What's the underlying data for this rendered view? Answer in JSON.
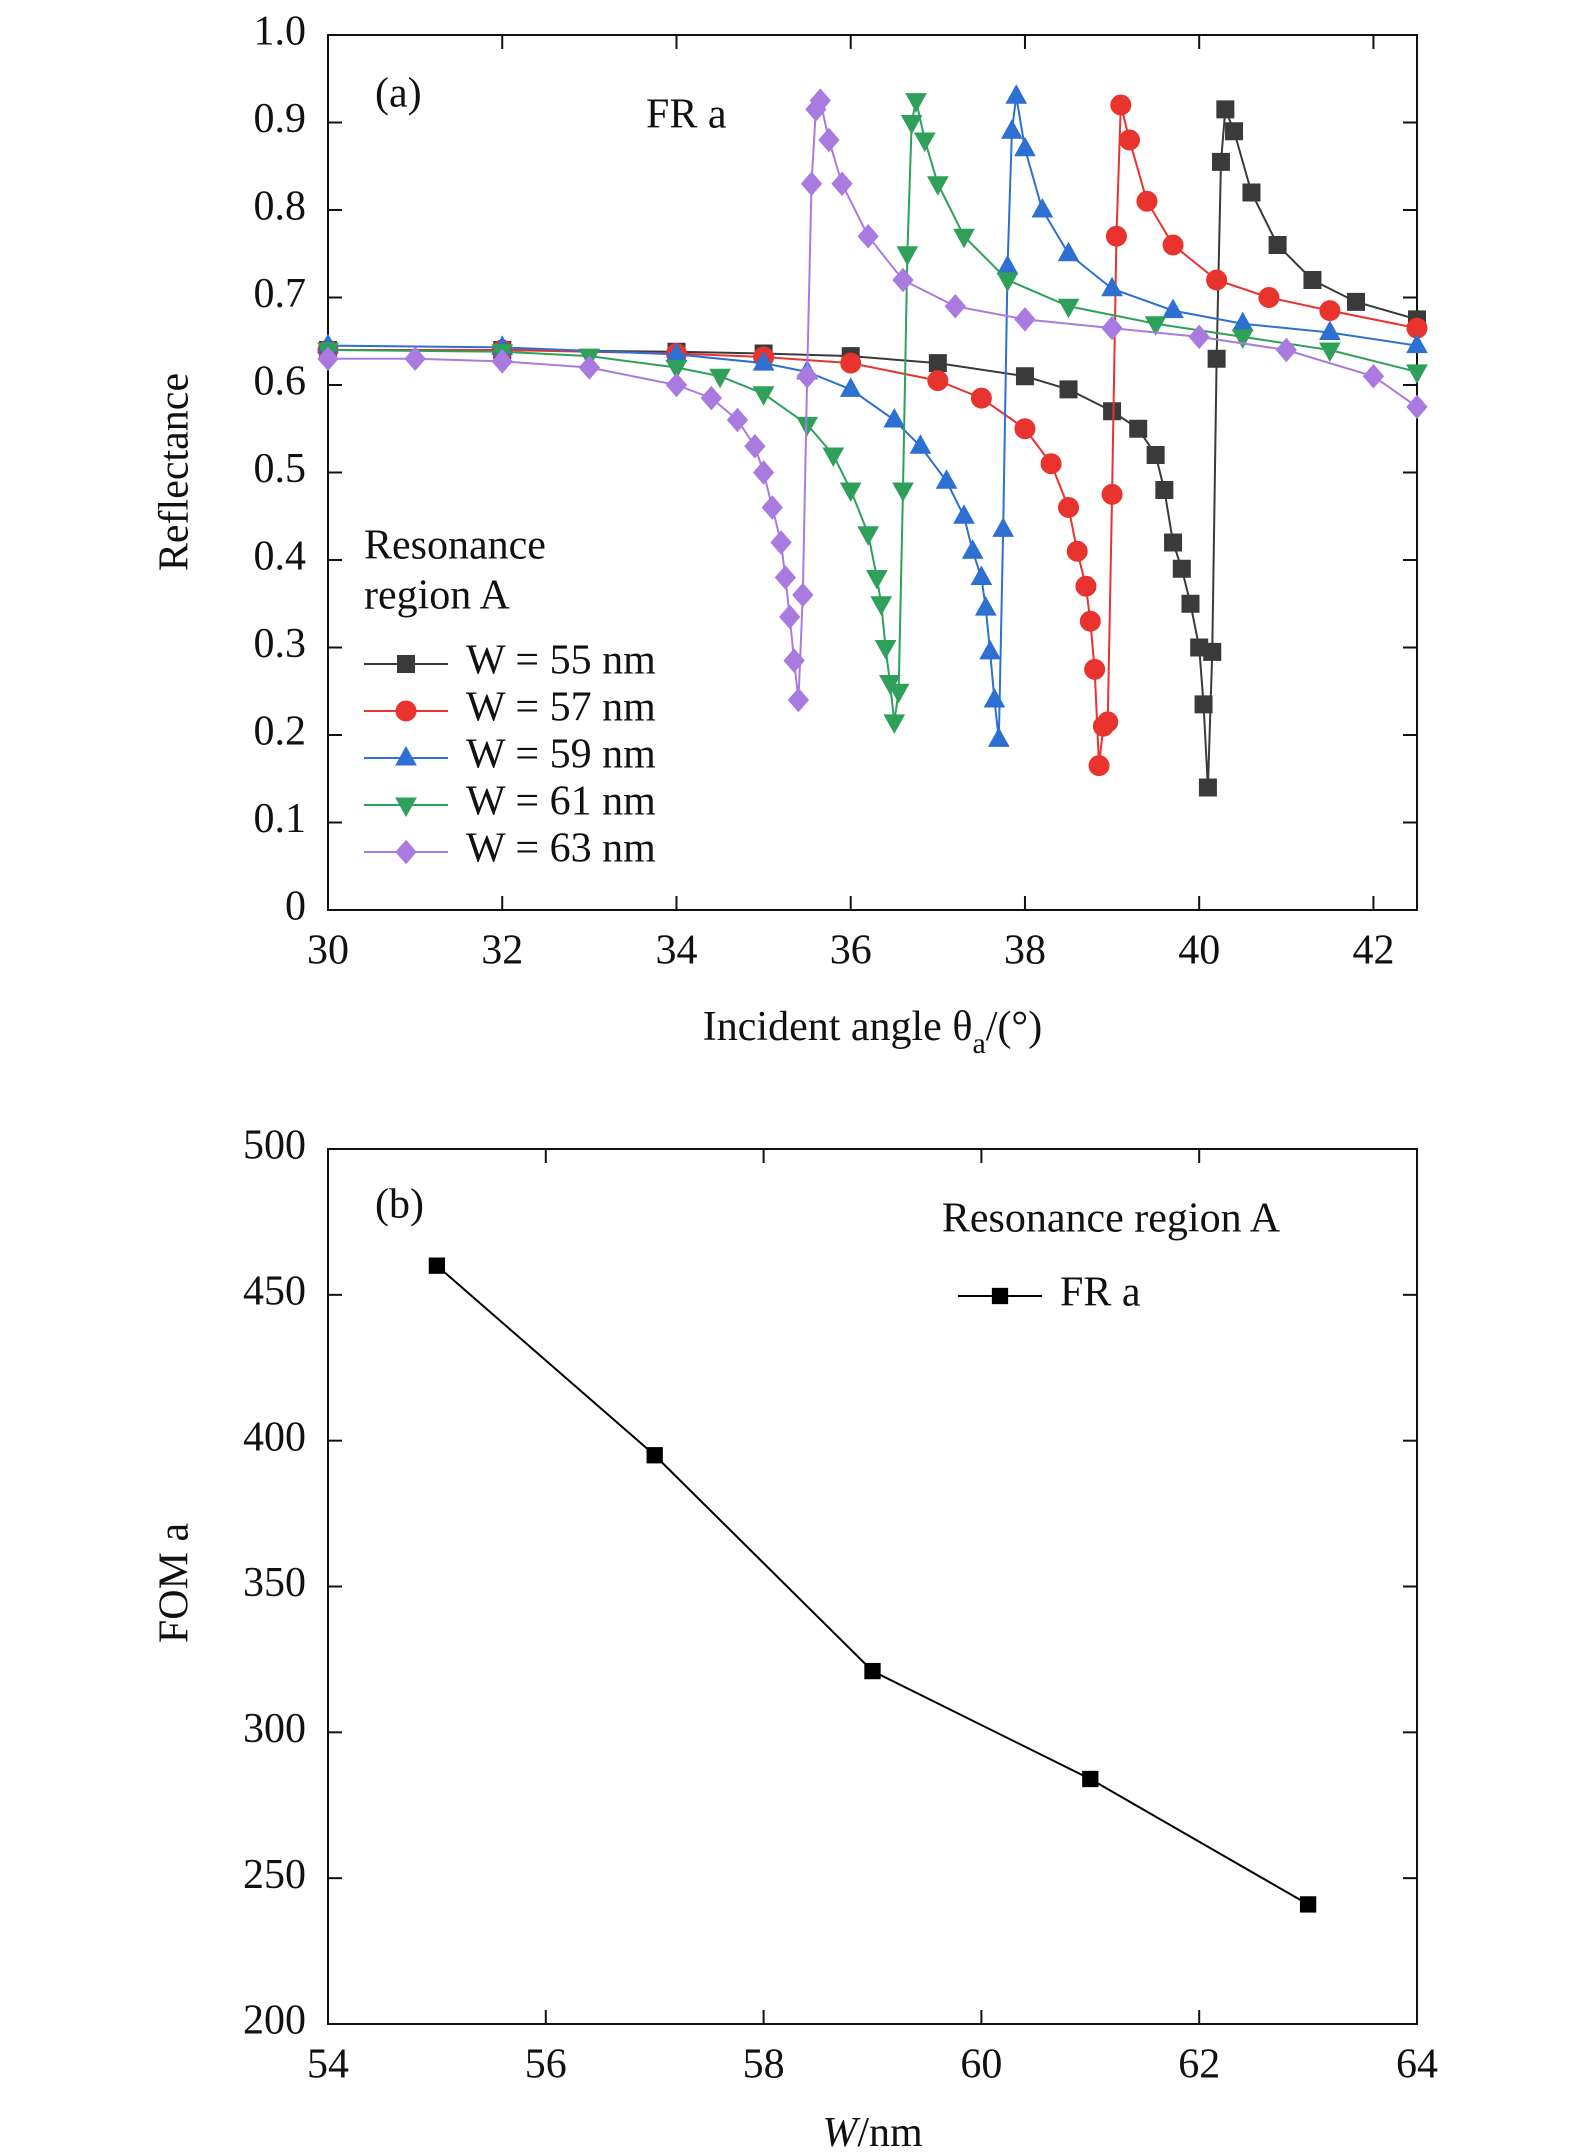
{
  "chart_data": [
    {
      "type": "line",
      "annotations": [
        "(a)",
        "FR a"
      ],
      "xlabel": {
        "main": "Incident angle θ",
        "sub": "a",
        "tail": "/(°)"
      },
      "ylabel": "Reflectance",
      "legend_title": [
        "Resonance",
        "region A"
      ],
      "xlim": [
        30,
        42.5
      ],
      "xticks": [
        30,
        32,
        34,
        36,
        38,
        40,
        42
      ],
      "ylim": [
        0,
        1
      ],
      "yticks": [
        0,
        0.1,
        0.2,
        0.3,
        0.4,
        0.5,
        0.6,
        0.7,
        0.8,
        0.9,
        {
          "value": 1,
          "label": "1.0"
        }
      ],
      "series": [
        {
          "name": "W = 55 nm",
          "color": "#3a3a3a",
          "marker": "square",
          "x": [
            30,
            32,
            34,
            35,
            36,
            37,
            38,
            38.5,
            39,
            39.3,
            39.5,
            39.6,
            39.7,
            39.8,
            39.9,
            40.0,
            40.05,
            40.1,
            40.15,
            40.2,
            40.25,
            40.3,
            40.4,
            40.6,
            40.9,
            41.3,
            41.8,
            42.5
          ],
          "values": [
            0.64,
            0.64,
            0.638,
            0.636,
            0.633,
            0.625,
            0.61,
            0.595,
            0.57,
            0.55,
            0.52,
            0.48,
            0.42,
            0.39,
            0.35,
            0.3,
            0.235,
            0.14,
            0.295,
            0.63,
            0.855,
            0.915,
            0.89,
            0.82,
            0.76,
            0.72,
            0.695,
            0.675
          ]
        },
        {
          "name": "W = 57 nm",
          "color": "#e8332e",
          "marker": "circle",
          "x": [
            30,
            32,
            34,
            35,
            36,
            37,
            37.5,
            38,
            38.3,
            38.5,
            38.6,
            38.7,
            38.75,
            38.8,
            38.85,
            38.9,
            38.95,
            39.0,
            39.05,
            39.1,
            39.2,
            39.4,
            39.7,
            40.2,
            40.8,
            41.5,
            42.5
          ],
          "values": [
            0.64,
            0.64,
            0.636,
            0.632,
            0.625,
            0.605,
            0.585,
            0.55,
            0.51,
            0.46,
            0.41,
            0.37,
            0.33,
            0.275,
            0.165,
            0.21,
            0.215,
            0.475,
            0.77,
            0.92,
            0.88,
            0.81,
            0.76,
            0.72,
            0.7,
            0.685,
            0.665
          ]
        },
        {
          "name": "W = 59 nm",
          "color": "#2e6fd2",
          "marker": "triangle-up",
          "x": [
            30,
            32,
            34,
            35,
            35.5,
            36,
            36.5,
            36.8,
            37.1,
            37.3,
            37.4,
            37.5,
            37.55,
            37.6,
            37.65,
            37.7,
            37.75,
            37.8,
            37.85,
            37.9,
            38.0,
            38.2,
            38.5,
            39,
            39.7,
            40.5,
            41.5,
            42.5
          ],
          "values": [
            0.645,
            0.643,
            0.635,
            0.625,
            0.615,
            0.595,
            0.56,
            0.53,
            0.49,
            0.45,
            0.41,
            0.38,
            0.345,
            0.295,
            0.24,
            0.195,
            0.435,
            0.735,
            0.89,
            0.93,
            0.87,
            0.8,
            0.75,
            0.71,
            0.685,
            0.67,
            0.66,
            0.645
          ]
        },
        {
          "name": "W = 61 nm",
          "color": "#2ea05a",
          "marker": "triangle-down",
          "x": [
            30,
            32,
            33,
            34,
            34.5,
            35,
            35.5,
            35.8,
            36.0,
            36.2,
            36.3,
            36.35,
            36.4,
            36.45,
            36.5,
            36.55,
            36.6,
            36.65,
            36.7,
            36.75,
            36.85,
            37.0,
            37.3,
            37.8,
            38.5,
            39.5,
            40.5,
            41.5,
            42.5
          ],
          "values": [
            0.64,
            0.638,
            0.633,
            0.62,
            0.61,
            0.59,
            0.555,
            0.52,
            0.48,
            0.43,
            0.38,
            0.35,
            0.3,
            0.26,
            0.215,
            0.25,
            0.48,
            0.75,
            0.9,
            0.925,
            0.88,
            0.83,
            0.77,
            0.72,
            0.69,
            0.67,
            0.655,
            0.64,
            0.615
          ]
        },
        {
          "name": "W = 63 nm",
          "color": "#a97be0",
          "marker": "diamond",
          "x": [
            30,
            31,
            32,
            33,
            34,
            34.4,
            34.7,
            34.9,
            35.0,
            35.1,
            35.2,
            35.25,
            35.3,
            35.35,
            35.4,
            35.45,
            35.5,
            35.55,
            35.6,
            35.65,
            35.75,
            35.9,
            36.2,
            36.6,
            37.2,
            38,
            39,
            40,
            41,
            42,
            42.5
          ],
          "values": [
            0.63,
            0.63,
            0.627,
            0.62,
            0.6,
            0.585,
            0.56,
            0.53,
            0.5,
            0.46,
            0.42,
            0.38,
            0.335,
            0.285,
            0.24,
            0.36,
            0.61,
            0.83,
            0.915,
            0.925,
            0.88,
            0.83,
            0.77,
            0.72,
            0.69,
            0.675,
            0.665,
            0.655,
            0.64,
            0.61,
            0.575
          ]
        }
      ]
    },
    {
      "type": "line",
      "annotations": [
        "(b)"
      ],
      "xlabel": {
        "main": "W",
        "tail": "/nm"
      },
      "ylabel": "FOM a",
      "legend_title": [
        "Resonance region A"
      ],
      "xlim": [
        54,
        64
      ],
      "xticks": [
        54,
        56,
        58,
        60,
        62,
        64
      ],
      "ylim": [
        200,
        500
      ],
      "yticks": [
        200,
        250,
        300,
        350,
        400,
        450,
        500
      ],
      "series": [
        {
          "name": "FR a",
          "color": "#000000",
          "marker": "square",
          "x": [
            55,
            57,
            59,
            61,
            63
          ],
          "values": [
            460,
            395,
            321,
            284,
            241
          ]
        }
      ]
    }
  ]
}
